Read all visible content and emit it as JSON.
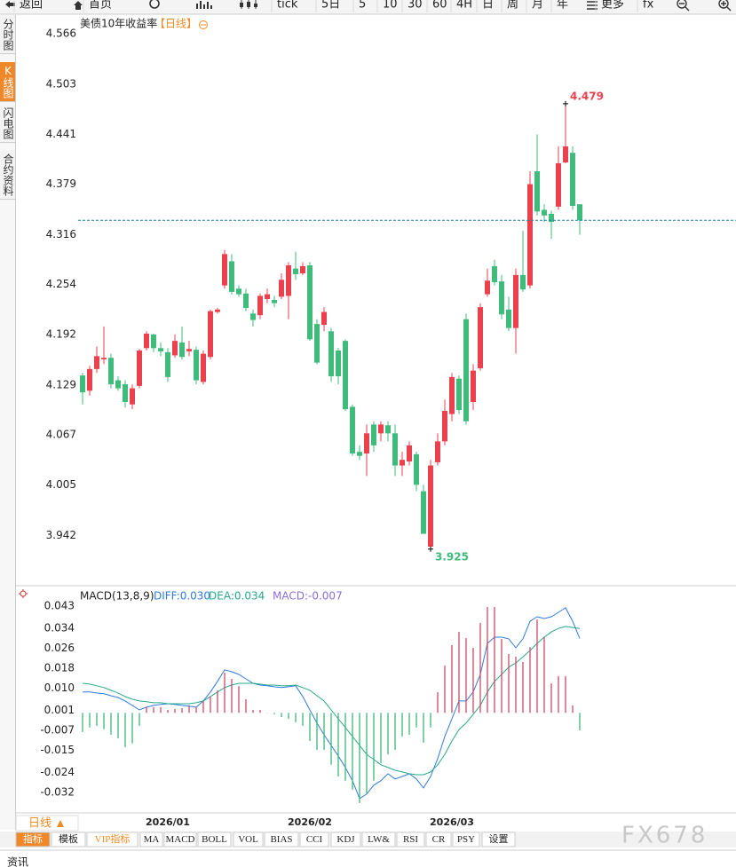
{
  "toolbar": [
    "返回",
    "首页",
    "tick",
    "5日",
    "5",
    "10",
    "30",
    "60",
    "4H",
    "日",
    "周",
    "月",
    "年",
    "更多",
    "fx"
  ],
  "sidebar": {
    "items": [
      "分时图",
      "K线图",
      "闪电图",
      "合约资料"
    ],
    "active": 1
  },
  "chart_data": [
    {
      "type": "candlestick",
      "title": "美债10年收益率",
      "period": "【日线】",
      "open": [
        4.141,
        4.122,
        4.149,
        4.161,
        4.163,
        4.135,
        4.13,
        4.105,
        4.128,
        4.175,
        4.192,
        4.175,
        4.17,
        4.166,
        4.182,
        4.171,
        4.173,
        4.133,
        4.164,
        4.22,
        4.253,
        4.283,
        4.249,
        4.243,
        4.218,
        4.216,
        4.236,
        4.235,
        4.239,
        4.24,
        4.274,
        4.268,
        4.278,
        4.205,
        4.204,
        4.196,
        4.172,
        4.184,
        4.102,
        4.046,
        4.044,
        4.08,
        4.069,
        4.079,
        4.069,
        4.029,
        4.034,
        4.043,
        3.997,
        3.928,
        4.033,
        4.059,
        4.093,
        4.137,
        4.211,
        4.108,
        4.15,
        4.242,
        4.277,
        4.258,
        4.223,
        4.2,
        4.266,
        4.253,
        4.395,
        4.347,
        4.342,
        4.351,
        4.406,
        4.418,
        4.354
      ],
      "high": [
        4.144,
        4.153,
        4.177,
        4.202,
        4.168,
        4.14,
        4.135,
        4.13,
        4.174,
        4.196,
        4.193,
        4.182,
        4.175,
        4.192,
        4.202,
        4.184,
        4.177,
        4.172,
        4.223,
        4.225,
        4.297,
        4.292,
        4.253,
        4.249,
        4.223,
        4.243,
        4.249,
        4.24,
        4.268,
        4.282,
        4.295,
        4.282,
        4.282,
        4.211,
        4.226,
        4.2,
        4.175,
        4.186,
        4.105,
        4.054,
        4.08,
        4.084,
        4.084,
        4.084,
        4.08,
        4.046,
        4.059,
        4.046,
        4.005,
        4.036,
        4.069,
        4.111,
        4.144,
        4.141,
        4.218,
        4.155,
        4.231,
        4.274,
        4.285,
        4.266,
        4.239,
        4.274,
        4.321,
        4.395,
        4.441,
        4.354,
        4.346,
        4.426,
        4.479,
        4.426,
        4.354
      ],
      "low": [
        4.105,
        4.116,
        4.144,
        4.155,
        4.125,
        4.122,
        4.101,
        4.099,
        4.125,
        4.172,
        4.17,
        4.165,
        4.133,
        4.163,
        4.161,
        4.165,
        4.13,
        4.13,
        4.161,
        4.218,
        4.249,
        4.242,
        4.239,
        4.221,
        4.202,
        4.211,
        4.231,
        4.226,
        4.236,
        4.211,
        4.26,
        4.266,
        4.184,
        4.155,
        4.196,
        4.133,
        4.13,
        4.097,
        4.041,
        4.036,
        4.016,
        4.046,
        4.059,
        4.059,
        4.016,
        4.016,
        4.029,
        3.997,
        3.944,
        3.925,
        4.029,
        4.054,
        4.084,
        4.093,
        4.08,
        4.098,
        4.147,
        4.239,
        4.253,
        4.211,
        4.196,
        4.168,
        4.245,
        4.249,
        4.34,
        4.332,
        4.311,
        4.347,
        4.405,
        4.347,
        4.316
      ],
      "close": [
        4.12,
        4.149,
        4.165,
        4.163,
        4.13,
        4.125,
        4.108,
        4.125,
        4.172,
        4.193,
        4.175,
        4.171,
        4.139,
        4.184,
        4.164,
        4.174,
        4.135,
        4.168,
        4.221,
        4.223,
        4.292,
        4.245,
        4.242,
        4.225,
        4.21,
        4.24,
        4.242,
        4.231,
        4.26,
        4.278,
        4.267,
        4.277,
        4.186,
        4.157,
        4.22,
        4.14,
        4.14,
        4.099,
        4.044,
        4.041,
        4.069,
        4.054,
        4.08,
        4.069,
        4.029,
        4.036,
        4.054,
        4.005,
        3.944,
        4.029,
        4.059,
        4.097,
        4.139,
        4.098,
        4.084,
        4.147,
        4.226,
        4.259,
        4.257,
        4.217,
        4.2,
        4.266,
        4.248,
        4.379,
        4.345,
        4.34,
        4.332,
        4.405,
        4.426,
        4.352,
        4.334
      ],
      "up_color": "#e9414d",
      "down_color": "#3fbb7b",
      "last_line_color": "#1f82a8",
      "ylim": [
        3.885,
        4.586
      ],
      "yticks": [
        4.566,
        4.503,
        4.441,
        4.379,
        4.316,
        4.254,
        4.192,
        4.129,
        4.067,
        4.005,
        3.942
      ]
    },
    {
      "type": "macd",
      "title": "MACD(13,8,9)",
      "categories": [
        null,
        null,
        null,
        null,
        null,
        null,
        null,
        null,
        null,
        null,
        null,
        null,
        "2026/01",
        null,
        null,
        null,
        null,
        null,
        null,
        null,
        null,
        null,
        null,
        null,
        null,
        null,
        null,
        null,
        null,
        null,
        null,
        null,
        "2026/02",
        null,
        null,
        null,
        null,
        null,
        null,
        null,
        null,
        null,
        null,
        null,
        null,
        null,
        null,
        null,
        null,
        null,
        null,
        null,
        "2026/03",
        null,
        null,
        null,
        null,
        null,
        null,
        null,
        null,
        null,
        null,
        null,
        null,
        null,
        null,
        null,
        null,
        null,
        null
      ],
      "series": [
        {
          "name": "DIFF:0.030",
          "type": "line",
          "color": "#2f7be0",
          "values": [
            0.0084,
            0.0084,
            0.008,
            0.0077,
            0.0069,
            0.0062,
            0.0048,
            0.003,
            0.0012,
            0.0023,
            0.003,
            0.0034,
            0.0037,
            0.0034,
            0.003,
            0.0027,
            0.0023,
            0.0048,
            0.0084,
            0.0127,
            0.0173,
            0.0166,
            0.0155,
            0.0137,
            0.0119,
            0.0112,
            0.0109,
            0.0105,
            0.0102,
            0.0105,
            0.0109,
            0.0066,
            0.0012,
            -0.0041,
            -0.0088,
            -0.0131,
            -0.0173,
            -0.022,
            -0.0273,
            -0.0345,
            -0.0327,
            -0.0291,
            -0.0273,
            -0.0245,
            -0.0266,
            -0.0256,
            -0.0245,
            -0.0266,
            -0.0302,
            -0.0256,
            -0.0184,
            -0.0095,
            -0.0024,
            0.0048,
            0.0048,
            0.0084,
            0.0155,
            0.028,
            0.0305,
            0.0305,
            0.0298,
            0.0262,
            0.0298,
            0.0369,
            0.0387,
            0.038,
            0.0387,
            0.0405,
            0.0423,
            0.0369,
            0.03
          ]
        },
        {
          "name": "DEA:0.034",
          "type": "line",
          "color": "#27a98a",
          "values": [
            0.0119,
            0.0116,
            0.0109,
            0.0102,
            0.0091,
            0.008,
            0.0066,
            0.0055,
            0.0048,
            0.0045,
            0.0041,
            0.0041,
            0.0037,
            0.0037,
            0.0037,
            0.0037,
            0.0041,
            0.0048,
            0.0066,
            0.0084,
            0.0102,
            0.0112,
            0.0119,
            0.0119,
            0.0119,
            0.0116,
            0.0112,
            0.0112,
            0.0109,
            0.0109,
            0.0112,
            0.0102,
            0.0091,
            0.0069,
            0.0048,
            0.0012,
            -0.0024,
            -0.0059,
            -0.0095,
            -0.0131,
            -0.0167,
            -0.0188,
            -0.0209,
            -0.022,
            -0.0231,
            -0.0238,
            -0.0245,
            -0.0249,
            -0.0249,
            -0.0238,
            -0.0209,
            -0.0167,
            -0.0113,
            -0.0067,
            -0.0041,
            -0.0006,
            0.003,
            0.0084,
            0.0127,
            0.0155,
            0.0184,
            0.0201,
            0.0226,
            0.0251,
            0.028,
            0.0305,
            0.0326,
            0.034,
            0.0348,
            0.0344,
            0.034
          ]
        },
        {
          "name": "MACD:-0.007",
          "type": "bar",
          "color": "#8a6fd8",
          "up_color": "#cc4a66",
          "down_color": "#3cb878",
          "values": [
            -0.0077,
            -0.0059,
            -0.0052,
            -0.0066,
            -0.0088,
            -0.0102,
            -0.0138,
            -0.0123,
            -0.0052,
            0.0023,
            0.0023,
            0.0023,
            0.0012,
            0.0016,
            0.0019,
            0.003,
            0.0023,
            0.0048,
            0.0066,
            0.0091,
            0.0162,
            0.0137,
            0.0108,
            0.0055,
            0.0012,
            0.0012,
            0.0001,
            -0.0006,
            -0.0017,
            -0.0024,
            -0.0038,
            -0.0052,
            -0.0113,
            -0.0149,
            -0.0149,
            -0.0209,
            -0.0256,
            -0.0273,
            -0.0309,
            -0.0363,
            -0.0327,
            -0.0273,
            -0.0202,
            -0.0167,
            -0.0149,
            -0.0095,
            -0.0088,
            -0.0059,
            -0.012,
            -0.0059,
            0.0083,
            0.019,
            0.0273,
            0.0326,
            0.0301,
            0.0262,
            0.0362,
            0.0426,
            0.0426,
            0.0298,
            0.0237,
            0.0226,
            0.0205,
            0.0265,
            0.0376,
            0.0305,
            0.0119,
            0.0148,
            0.0148,
            0.003,
            -0.007
          ]
        }
      ],
      "ylim": [
        -0.0399,
        0.0505
      ],
      "yticks": [
        0.043,
        0.034,
        0.026,
        0.018,
        {
          "value": 0.01,
          "label": "0.010"
        },
        0.001,
        -0.007,
        -0.015,
        -0.024,
        -0.032
      ]
    }
  ],
  "period_tab": "日线",
  "indicator_tabs": {
    "items": [
      "指标",
      "模板",
      "VIP指标",
      "MA",
      "MACD",
      "BOLL",
      "VOL",
      "BIAS",
      "CCI",
      "KDJ",
      "LW&",
      "RSI",
      "CR",
      "PSY",
      "设置"
    ],
    "active": 0
  },
  "news_tab": "资讯",
  "watermark": "FX678"
}
